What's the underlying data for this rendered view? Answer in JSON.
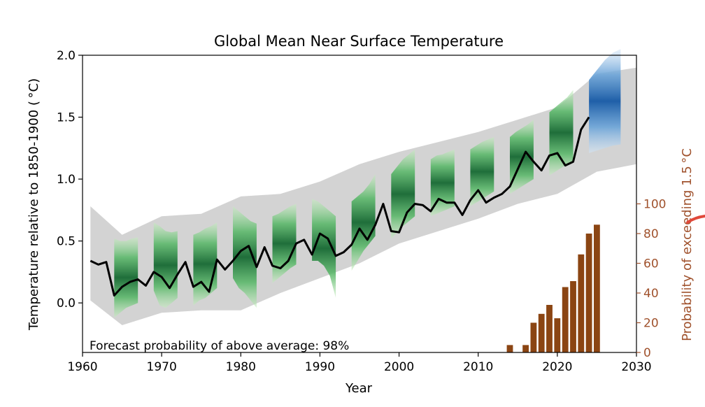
{
  "chart_data": {
    "type": "line",
    "title": "Global Mean Near Surface Temperature",
    "xlabel": "Year",
    "ylabel": "Temperature relative to 1850-1900 ( °C)",
    "ylabel_right": "Probability of exceeding 1.5 °C",
    "annotation": "Forecast probability of above average: 98%",
    "xlim": [
      1960,
      2030
    ],
    "ylim": [
      -0.4,
      2.0
    ],
    "ylim_right": [
      0,
      200
    ],
    "x_ticks": [
      "1960",
      "1970",
      "1980",
      "1990",
      "2000",
      "2010",
      "2020",
      "2030"
    ],
    "y_ticks": [
      "0.0",
      "0.5",
      "1.0",
      "1.5",
      "2.0"
    ],
    "y_ticks_right": [
      "0",
      "20",
      "40",
      "60",
      "80",
      "100"
    ],
    "grid": false,
    "colors": {
      "observed_line": "#000000",
      "ensemble_range": "#d3d3d3",
      "hindcast": "#1f6e3a",
      "forecast": "#1f5fa8",
      "probability_bars": "#8b4513",
      "right_axis": "#a0522d"
    },
    "observed": {
      "x": [
        1961,
        1962,
        1963,
        1964,
        1965,
        1966,
        1967,
        1968,
        1969,
        1970,
        1971,
        1972,
        1973,
        1974,
        1975,
        1976,
        1977,
        1978,
        1979,
        1980,
        1981,
        1982,
        1983,
        1984,
        1985,
        1986,
        1987,
        1988,
        1989,
        1990,
        1991,
        1992,
        1993,
        1994,
        1995,
        1996,
        1997,
        1998,
        1999,
        2000,
        2001,
        2002,
        2003,
        2004,
        2005,
        2006,
        2007,
        2008,
        2009,
        2010,
        2011,
        2012,
        2013,
        2014,
        2015,
        2016,
        2017,
        2018,
        2019,
        2020,
        2021,
        2022,
        2023,
        2024
      ],
      "y": [
        0.34,
        0.31,
        0.33,
        0.06,
        0.13,
        0.17,
        0.19,
        0.14,
        0.25,
        0.21,
        0.12,
        0.23,
        0.33,
        0.13,
        0.17,
        0.09,
        0.35,
        0.27,
        0.34,
        0.42,
        0.46,
        0.29,
        0.45,
        0.3,
        0.28,
        0.34,
        0.48,
        0.51,
        0.39,
        0.56,
        0.52,
        0.38,
        0.41,
        0.47,
        0.6,
        0.51,
        0.63,
        0.8,
        0.58,
        0.57,
        0.73,
        0.8,
        0.79,
        0.74,
        0.84,
        0.81,
        0.81,
        0.71,
        0.83,
        0.91,
        0.81,
        0.85,
        0.88,
        0.94,
        1.08,
        1.22,
        1.14,
        1.07,
        1.19,
        1.21,
        1.11,
        1.14,
        1.4,
        1.5
      ]
    },
    "ensemble_range": {
      "x": [
        1961,
        1965,
        1970,
        1975,
        1980,
        1985,
        1990,
        1995,
        2000,
        2005,
        2010,
        2015,
        2020,
        2025,
        2030
      ],
      "lower": [
        0.02,
        -0.18,
        -0.08,
        -0.06,
        -0.06,
        0.08,
        0.2,
        0.32,
        0.48,
        0.58,
        0.68,
        0.8,
        0.88,
        1.06,
        1.12
      ],
      "upper": [
        0.78,
        0.55,
        0.7,
        0.72,
        0.86,
        0.88,
        0.98,
        1.12,
        1.22,
        1.3,
        1.38,
        1.48,
        1.58,
        1.85,
        1.9
      ]
    },
    "hindcast_bands": [
      {
        "start": 1964,
        "end": 1967,
        "lower": [
          -0.12,
          -0.08,
          -0.04,
          -0.02,
          0.0
        ],
        "upper": [
          0.52,
          0.5,
          0.5,
          0.52,
          0.53
        ],
        "center": [
          0.2,
          0.21,
          0.23,
          0.25,
          0.26
        ]
      },
      {
        "start": 1969,
        "end": 1972,
        "lower": [
          0.1,
          -0.02,
          -0.04,
          0.0,
          0.04
        ],
        "upper": [
          0.65,
          0.62,
          0.58,
          0.57,
          0.58
        ],
        "center": [
          0.38,
          0.3,
          0.27,
          0.28,
          0.31
        ]
      },
      {
        "start": 1974,
        "end": 1977,
        "lower": [
          -0.02,
          0.02,
          0.04,
          0.08,
          0.12
        ],
        "upper": [
          0.55,
          0.57,
          0.6,
          0.62,
          0.65
        ],
        "center": [
          0.26,
          0.29,
          0.32,
          0.35,
          0.38
        ]
      },
      {
        "start": 1979,
        "end": 1982,
        "lower": [
          0.2,
          0.12,
          0.08,
          0.02,
          -0.04
        ],
        "upper": [
          0.78,
          0.74,
          0.7,
          0.66,
          0.64
        ],
        "center": [
          0.5,
          0.43,
          0.39,
          0.33,
          0.3
        ]
      },
      {
        "start": 1984,
        "end": 1987,
        "lower": [
          0.16,
          0.2,
          0.24,
          0.28,
          0.31
        ],
        "upper": [
          0.7,
          0.72,
          0.75,
          0.78,
          0.8
        ],
        "center": [
          0.4,
          0.44,
          0.48,
          0.51,
          0.55
        ]
      },
      {
        "start": 1989,
        "end": 1992,
        "lower": [
          0.34,
          0.34,
          0.3,
          0.22,
          0.04
        ],
        "upper": [
          0.84,
          0.82,
          0.78,
          0.74,
          0.7
        ],
        "center": [
          0.58,
          0.57,
          0.52,
          0.45,
          0.3
        ]
      },
      {
        "start": 1994,
        "end": 1997,
        "lower": [
          0.26,
          0.34,
          0.42,
          0.48,
          0.54
        ],
        "upper": [
          0.82,
          0.86,
          0.9,
          0.96,
          1.04
        ],
        "center": [
          0.54,
          0.6,
          0.65,
          0.71,
          0.77
        ]
      },
      {
        "start": 1999,
        "end": 2002,
        "lower": [
          0.52,
          0.57,
          0.62,
          0.66,
          0.7
        ],
        "upper": [
          1.04,
          1.1,
          1.16,
          1.2,
          1.24
        ],
        "center": [
          0.77,
          0.83,
          0.88,
          0.92,
          0.96
        ]
      },
      {
        "start": 2004,
        "end": 2007,
        "lower": [
          0.7,
          0.72,
          0.74,
          0.76,
          0.78
        ],
        "upper": [
          1.16,
          1.19,
          1.2,
          1.22,
          1.24
        ],
        "center": [
          0.93,
          0.95,
          0.97,
          0.99,
          1.01
        ]
      },
      {
        "start": 2009,
        "end": 2012,
        "lower": [
          0.78,
          0.81,
          0.84,
          0.87,
          0.9
        ],
        "upper": [
          1.24,
          1.27,
          1.3,
          1.32,
          1.34
        ],
        "center": [
          1.01,
          1.04,
          1.07,
          1.1,
          1.12
        ]
      },
      {
        "start": 2014,
        "end": 2017,
        "lower": [
          0.88,
          0.91,
          0.94,
          0.97,
          1.0
        ],
        "upper": [
          1.34,
          1.38,
          1.41,
          1.44,
          1.48
        ],
        "center": [
          1.12,
          1.16,
          1.19,
          1.22,
          1.25
        ]
      },
      {
        "start": 2019,
        "end": 2022,
        "lower": [
          1.03,
          1.06,
          1.09,
          1.12,
          1.14
        ],
        "upper": [
          1.54,
          1.58,
          1.62,
          1.66,
          1.72
        ],
        "center": [
          1.27,
          1.3,
          1.34,
          1.38,
          1.42
        ]
      }
    ],
    "forecast_band": {
      "start": 2024,
      "end": 2028,
      "lower": [
        1.21,
        1.23,
        1.25,
        1.27,
        1.28
      ],
      "upper": [
        1.8,
        1.88,
        1.96,
        2.02,
        2.05
      ],
      "center": [
        1.52,
        1.55,
        1.57,
        1.59,
        1.61
      ]
    },
    "probability_bars": {
      "x": [
        2014,
        2016,
        2017,
        2018,
        2019,
        2020,
        2021,
        2022,
        2023,
        2024,
        2025
      ],
      "y": [
        5,
        5,
        20,
        26,
        32,
        23,
        44,
        48,
        66,
        80,
        86
      ]
    }
  }
}
